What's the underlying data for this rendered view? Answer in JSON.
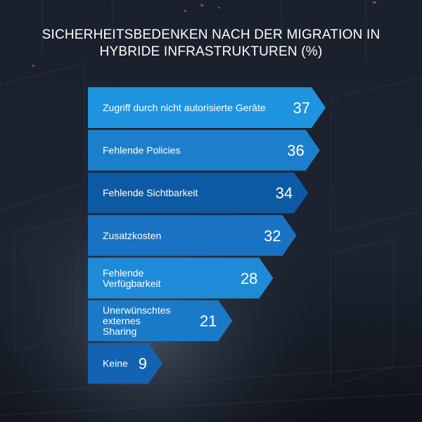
{
  "chart_data": {
    "type": "bar",
    "orientation": "horizontal",
    "title": "SICHERHEITSBEDENKEN NACH DER MIGRATION IN HYBRIDE INFRASTRUKTUREN (%)",
    "title_lines": [
      "SICHERHEITSBEDENKEN NACH DER MIGRATION IN",
      "HYBRIDE INFRASTRUKTUREN (%)"
    ],
    "categories": [
      "Zugriff durch nicht autorisierte Geräte",
      "Fehlende Policies",
      "Fehlende Sichtbarkeit",
      "Zusatzkosten",
      "Fehlende Verfügbarkeit",
      "Unerwünschtes externes Sharing",
      "Keine"
    ],
    "category_lines": [
      [
        "Zugriff durch nicht autorisierte Geräte"
      ],
      [
        "Fehlende Policies"
      ],
      [
        "Fehlende Sichtbarkeit"
      ],
      [
        "Zusatzkosten"
      ],
      [
        "Fehlende",
        "Verfügbarkeit"
      ],
      [
        "Unerwünschtes",
        "externes",
        "Sharing"
      ],
      [
        "Keine"
      ]
    ],
    "values": [
      37,
      36,
      34,
      32,
      28,
      21,
      9
    ],
    "xlabel": "",
    "ylabel": "",
    "xlim": [
      0,
      37
    ],
    "colors": [
      "#1e94e0",
      "#1b7fcc",
      "#0d5aa4",
      "#1a72c2",
      "#1f8ad8",
      "#1a7ac8",
      "#1363b2"
    ],
    "text_color": "#ffffff",
    "background_color": "#141a24"
  }
}
